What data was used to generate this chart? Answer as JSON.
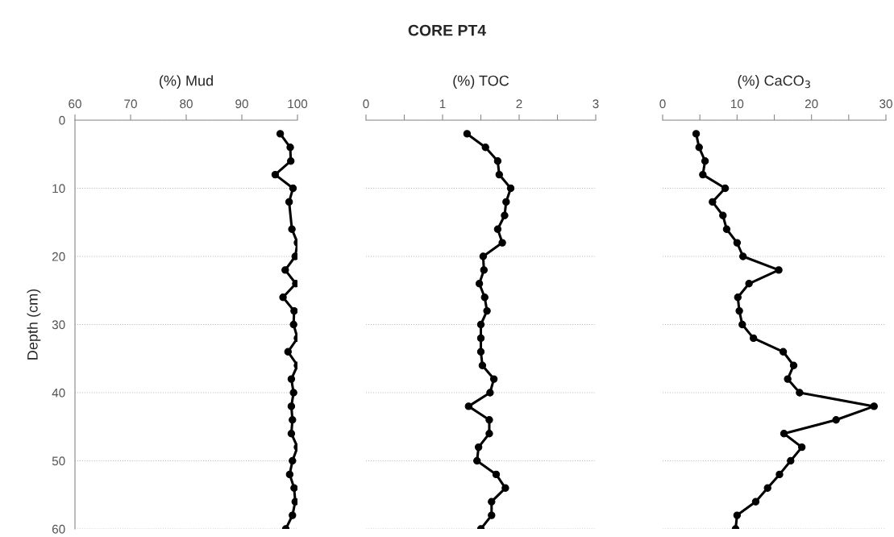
{
  "chart_data": [
    {
      "type": "line",
      "xlabel": "(%) Mud",
      "ylabel": "Depth (cm)",
      "marker": "circle",
      "line_style": "solid",
      "grid": "y",
      "series": [
        {
          "color": "#000000",
          "x": [
            96.9,
            98.7,
            98.8,
            96.0,
            99.2,
            98.5,
            99.0,
            100.0,
            99.6,
            97.8,
            99.7,
            97.4,
            99.4,
            99.3,
            100.0,
            98.3,
            100.0,
            98.9,
            99.3,
            98.9,
            99.1,
            98.9,
            100.0,
            99.1,
            98.6,
            99.4,
            99.6,
            99.1,
            97.9
          ],
          "values": [
            2,
            4,
            6,
            8,
            10,
            12,
            16,
            18,
            20,
            22,
            24,
            26,
            28,
            30,
            32,
            34,
            36,
            38,
            40,
            42,
            44,
            46,
            48,
            50,
            52,
            54,
            56,
            58,
            60
          ]
        }
      ],
      "xlim": [
        60,
        100
      ],
      "xticks": [
        60,
        70,
        80,
        90,
        100
      ],
      "ylim": [
        60,
        0
      ],
      "yticks": [
        0,
        10,
        20,
        30,
        40,
        50,
        60
      ]
    },
    {
      "type": "line",
      "title": "CORE PT4",
      "xlabel": "(%) TOC",
      "marker": "circle",
      "line_style": "solid",
      "grid": "y",
      "tick_labels": "x",
      "series": [
        {
          "color": "#000000",
          "x": [
            1.32,
            1.56,
            1.72,
            1.74,
            1.89,
            1.83,
            1.81,
            1.72,
            1.78,
            1.53,
            1.54,
            1.48,
            1.55,
            1.58,
            1.5,
            1.5,
            1.5,
            1.52,
            1.67,
            1.62,
            1.34,
            1.61,
            1.61,
            1.47,
            1.45,
            1.7,
            1.82,
            1.64,
            1.64,
            1.5
          ],
          "values": [
            2,
            4,
            6,
            8,
            10,
            12,
            14,
            16,
            18,
            20,
            22,
            24,
            26,
            28,
            30,
            32,
            34,
            36,
            38,
            40,
            42,
            44,
            46,
            48,
            50,
            52,
            54,
            56,
            58,
            60
          ]
        }
      ],
      "xlim": [
        0,
        3
      ],
      "xticks": [
        0,
        {
          "value": 0.5,
          "label": null
        },
        1,
        {
          "value": 1.5,
          "label": null
        },
        2,
        {
          "value": 2.5,
          "label": null
        },
        3
      ],
      "ylim": [
        60,
        0
      ],
      "yticks": [
        0,
        10,
        20,
        30,
        40,
        50,
        60
      ]
    },
    {
      "type": "line",
      "xlabel": "(%) CaCO$_{3}$",
      "marker": "circle",
      "line_style": "solid",
      "grid": "y",
      "tick_labels": "x",
      "series": [
        {
          "color": "#000000",
          "x": [
            4.5,
            4.9,
            5.7,
            5.4,
            8.4,
            6.7,
            8.1,
            8.6,
            10.0,
            10.8,
            15.6,
            11.6,
            10.1,
            10.3,
            10.7,
            12.2,
            16.2,
            17.6,
            16.8,
            18.4,
            28.4,
            23.3,
            16.3,
            18.7,
            17.2,
            15.7,
            14.1,
            12.5,
            10.0,
            9.8
          ],
          "values": [
            2,
            4,
            6,
            8,
            10,
            12,
            14,
            16,
            18,
            20,
            22,
            24,
            26,
            28,
            30,
            32,
            34,
            36,
            38,
            40,
            42,
            44,
            46,
            48,
            50,
            52,
            54,
            56,
            58,
            60
          ]
        }
      ],
      "xlim": [
        0,
        30
      ],
      "xticks": [
        0,
        {
          "value": 5,
          "label": null
        },
        10,
        {
          "value": 15,
          "label": null
        },
        20,
        {
          "value": 25,
          "label": null
        },
        30
      ],
      "ylim": [
        60,
        0
      ],
      "yticks": [
        0,
        10,
        20,
        30,
        40,
        50,
        60
      ]
    }
  ]
}
